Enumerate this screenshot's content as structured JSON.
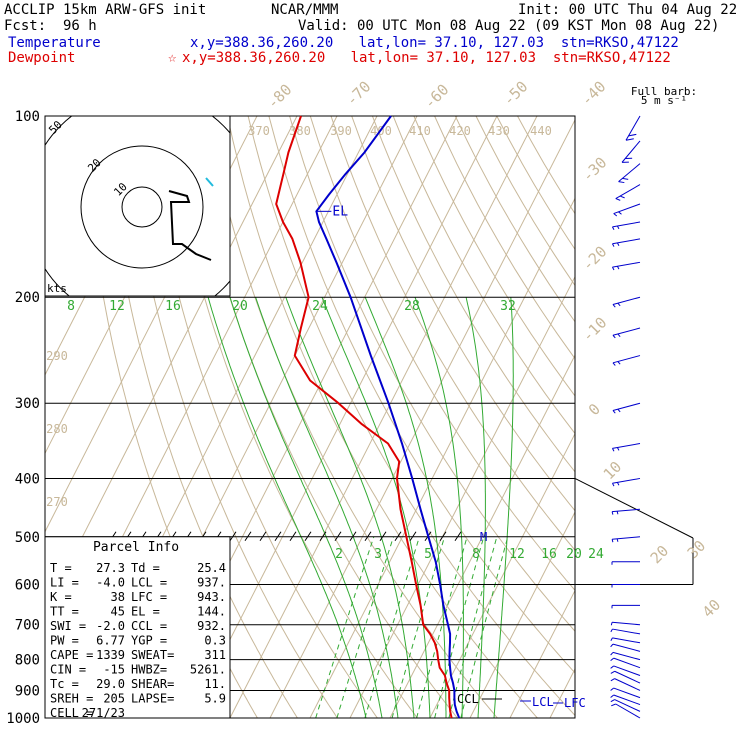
{
  "header": {
    "model": "ACCLIP 15km ARW-GFS init",
    "org": "NCAR/MMM",
    "init": "Init: 00 UTC Thu 04 Aug 22",
    "fcst_label": "Fcst:",
    "fcst_value": "96 h",
    "valid": "Valid: 00 UTC Mon 08 Aug 22 (09 KST Mon 08 Aug 22)",
    "temp_label": "Temperature",
    "temp_info": "x,y=388.36,260.20   lat,lon= 37.10, 127.03  stn=RKSO,47122",
    "dew_label": "Dewpoint",
    "dew_marker": "☆",
    "dew_info": "x,y=388.36,260.20   lat,lon= 37.10, 127.03  stn=RKSO,47122",
    "barb_title_1": "Full barb:",
    "barb_title_2": "5 m s⁻¹"
  },
  "hodograph": {
    "rings": [
      "10",
      "20",
      "50"
    ],
    "units": "kts"
  },
  "parcel": {
    "title": "Parcel Info",
    "rows": [
      {
        "l": "T   =",
        "lv": "27.3",
        "r": "Td =",
        "rv": "25.4"
      },
      {
        "l": "LI  =",
        "lv": "-4.0",
        "r": "LCL =",
        "rv": "937."
      },
      {
        "l": "K   =",
        "lv": "38",
        "r": "LFC =",
        "rv": "943."
      },
      {
        "l": "TT  =",
        "lv": "45",
        "r": "EL  =",
        "rv": "144."
      },
      {
        "l": "SWI =",
        "lv": "-2.0",
        "r": "CCL =",
        "rv": "932."
      },
      {
        "l": "PW  =",
        "lv": "6.77",
        "r": "YGP =",
        "rv": "0.3"
      },
      {
        "l": "CAPE =",
        "lv": "1339",
        "r": "SWEAT=",
        "rv": "311"
      },
      {
        "l": "CIN  =",
        "lv": "-15",
        "r": "HWBZ=",
        "rv": "5261."
      },
      {
        "l": "Tc  =",
        "lv": "29.0",
        "r": "SHEAR=",
        "rv": "11."
      },
      {
        "l": "SREH =",
        "lv": "205",
        "r": "LAPSE=",
        "rv": "5.9"
      },
      {
        "l": "CELL =",
        "lv": "271/23",
        "r": "",
        "rv": ""
      }
    ]
  },
  "chart_data": {
    "type": "line",
    "subtype": "skew-T log-p sounding",
    "y_axis": {
      "quantity": "pressure (hPa)",
      "scale": "log",
      "ticks": [
        100,
        200,
        300,
        400,
        500,
        600,
        700,
        800,
        900,
        1000
      ]
    },
    "series": [
      {
        "name": "Temperature",
        "color": "#0000cc",
        "points_p_T": [
          [
            1000,
            27.3
          ],
          [
            975,
            25.8
          ],
          [
            950,
            24.5
          ],
          [
            925,
            23.5
          ],
          [
            900,
            22.6
          ],
          [
            875,
            21.3
          ],
          [
            850,
            19.8
          ],
          [
            825,
            18.6
          ],
          [
            800,
            17.4
          ],
          [
            775,
            16.4
          ],
          [
            750,
            15.4
          ],
          [
            725,
            14.3
          ],
          [
            700,
            12.6
          ],
          [
            650,
            9.0
          ],
          [
            600,
            5.5
          ],
          [
            550,
            1.5
          ],
          [
            500,
            -3.5
          ],
          [
            450,
            -9.0
          ],
          [
            400,
            -15.0
          ],
          [
            350,
            -22.0
          ],
          [
            300,
            -30.5
          ],
          [
            250,
            -41.0
          ],
          [
            200,
            -53.5
          ],
          [
            175,
            -61.5
          ],
          [
            160,
            -67.0
          ],
          [
            150,
            -71.0
          ],
          [
            144,
            -73.0
          ],
          [
            135,
            -72.0
          ],
          [
            125,
            -70.5
          ],
          [
            115,
            -68.5
          ],
          [
            100,
            -66.5
          ]
        ]
      },
      {
        "name": "Dewpoint",
        "color": "#dd0000",
        "points_p_T": [
          [
            1000,
            25.4
          ],
          [
            975,
            24.2
          ],
          [
            950,
            23.2
          ],
          [
            925,
            22.2
          ],
          [
            900,
            21.3
          ],
          [
            875,
            19.7
          ],
          [
            850,
            18.3
          ],
          [
            825,
            16.0
          ],
          [
            800,
            14.6
          ],
          [
            775,
            13.3
          ],
          [
            750,
            11.6
          ],
          [
            725,
            9.3
          ],
          [
            700,
            6.4
          ],
          [
            650,
            3.3
          ],
          [
            600,
            -0.5
          ],
          [
            550,
            -4.5
          ],
          [
            500,
            -9.0
          ],
          [
            450,
            -14.0
          ],
          [
            400,
            -18.8
          ],
          [
            375,
            -20.4
          ],
          [
            350,
            -25.5
          ],
          [
            325,
            -34.5
          ],
          [
            300,
            -43.0
          ],
          [
            275,
            -53.0
          ],
          [
            250,
            -60.0
          ],
          [
            225,
            -62.0
          ],
          [
            200,
            -64.0
          ],
          [
            175,
            -70.5
          ],
          [
            160,
            -75.5
          ],
          [
            150,
            -80.0
          ],
          [
            140,
            -84.0
          ],
          [
            125,
            -86.0
          ],
          [
            115,
            -87.5
          ],
          [
            100,
            -89.0
          ]
        ]
      }
    ],
    "isotherm_labels": [
      "-80",
      "-70",
      "-60",
      "-50",
      "-40",
      "-30",
      "-20",
      "-10",
      "0",
      "10",
      "20",
      "30",
      "40"
    ],
    "theta_labels": [
      "370",
      "380",
      "390",
      "400",
      "410",
      "420",
      "430",
      "440"
    ],
    "theta_side_labels": [
      "290",
      "280",
      "270"
    ],
    "theta_e_labels": [
      "8",
      "12",
      "16",
      "20",
      "24",
      "28",
      "32"
    ],
    "mixing_ratio_labels": [
      "2",
      "3",
      "5",
      "8",
      "12",
      "16",
      "20",
      "24"
    ],
    "level_labels": {
      "el": "EL",
      "m": "M",
      "ccl": "CCL",
      "lcl": "LCL",
      "lfc": "LFC"
    },
    "wind_barbs_p_dir_speed_ms": [
      [
        1000,
        240,
        5
      ],
      [
        975,
        245,
        5
      ],
      [
        950,
        250,
        5
      ],
      [
        925,
        250,
        5
      ],
      [
        900,
        245,
        5
      ],
      [
        875,
        245,
        5
      ],
      [
        850,
        250,
        5
      ],
      [
        825,
        250,
        5
      ],
      [
        800,
        255,
        5
      ],
      [
        775,
        255,
        5
      ],
      [
        750,
        260,
        5
      ],
      [
        725,
        260,
        5
      ],
      [
        700,
        265,
        5
      ],
      [
        650,
        270,
        5
      ],
      [
        600,
        270,
        5
      ],
      [
        550,
        270,
        5
      ],
      [
        500,
        275,
        10
      ],
      [
        450,
        275,
        10
      ],
      [
        400,
        280,
        10
      ],
      [
        350,
        280,
        10
      ],
      [
        300,
        285,
        10
      ],
      [
        250,
        285,
        10
      ],
      [
        225,
        285,
        10
      ],
      [
        200,
        285,
        10
      ],
      [
        175,
        280,
        10
      ],
      [
        160,
        280,
        10
      ],
      [
        150,
        280,
        10
      ],
      [
        140,
        290,
        10
      ],
      [
        130,
        300,
        10
      ],
      [
        120,
        310,
        10
      ],
      [
        110,
        320,
        10
      ],
      [
        100,
        330,
        10
      ]
    ]
  }
}
